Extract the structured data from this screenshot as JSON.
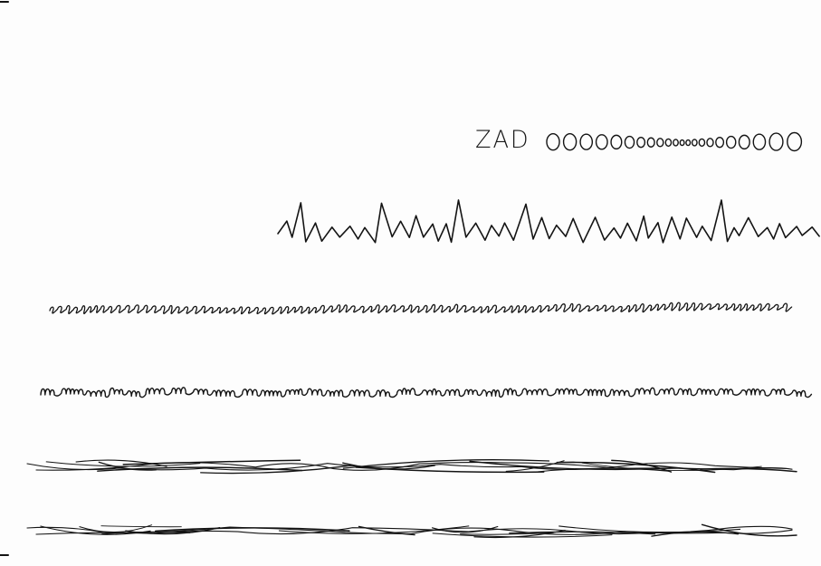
{
  "sheet": {
    "handwritten_text": "ZAD",
    "ink_color": "#141414",
    "paper_color": "#fdfdfd",
    "rows": [
      {
        "name": "circle-loops-row"
      },
      {
        "name": "zigzag-peaks-row"
      },
      {
        "name": "small-loops-row"
      },
      {
        "name": "m-scribble-row"
      },
      {
        "name": "wavy-lines-row-1"
      },
      {
        "name": "wavy-lines-row-2"
      }
    ]
  }
}
